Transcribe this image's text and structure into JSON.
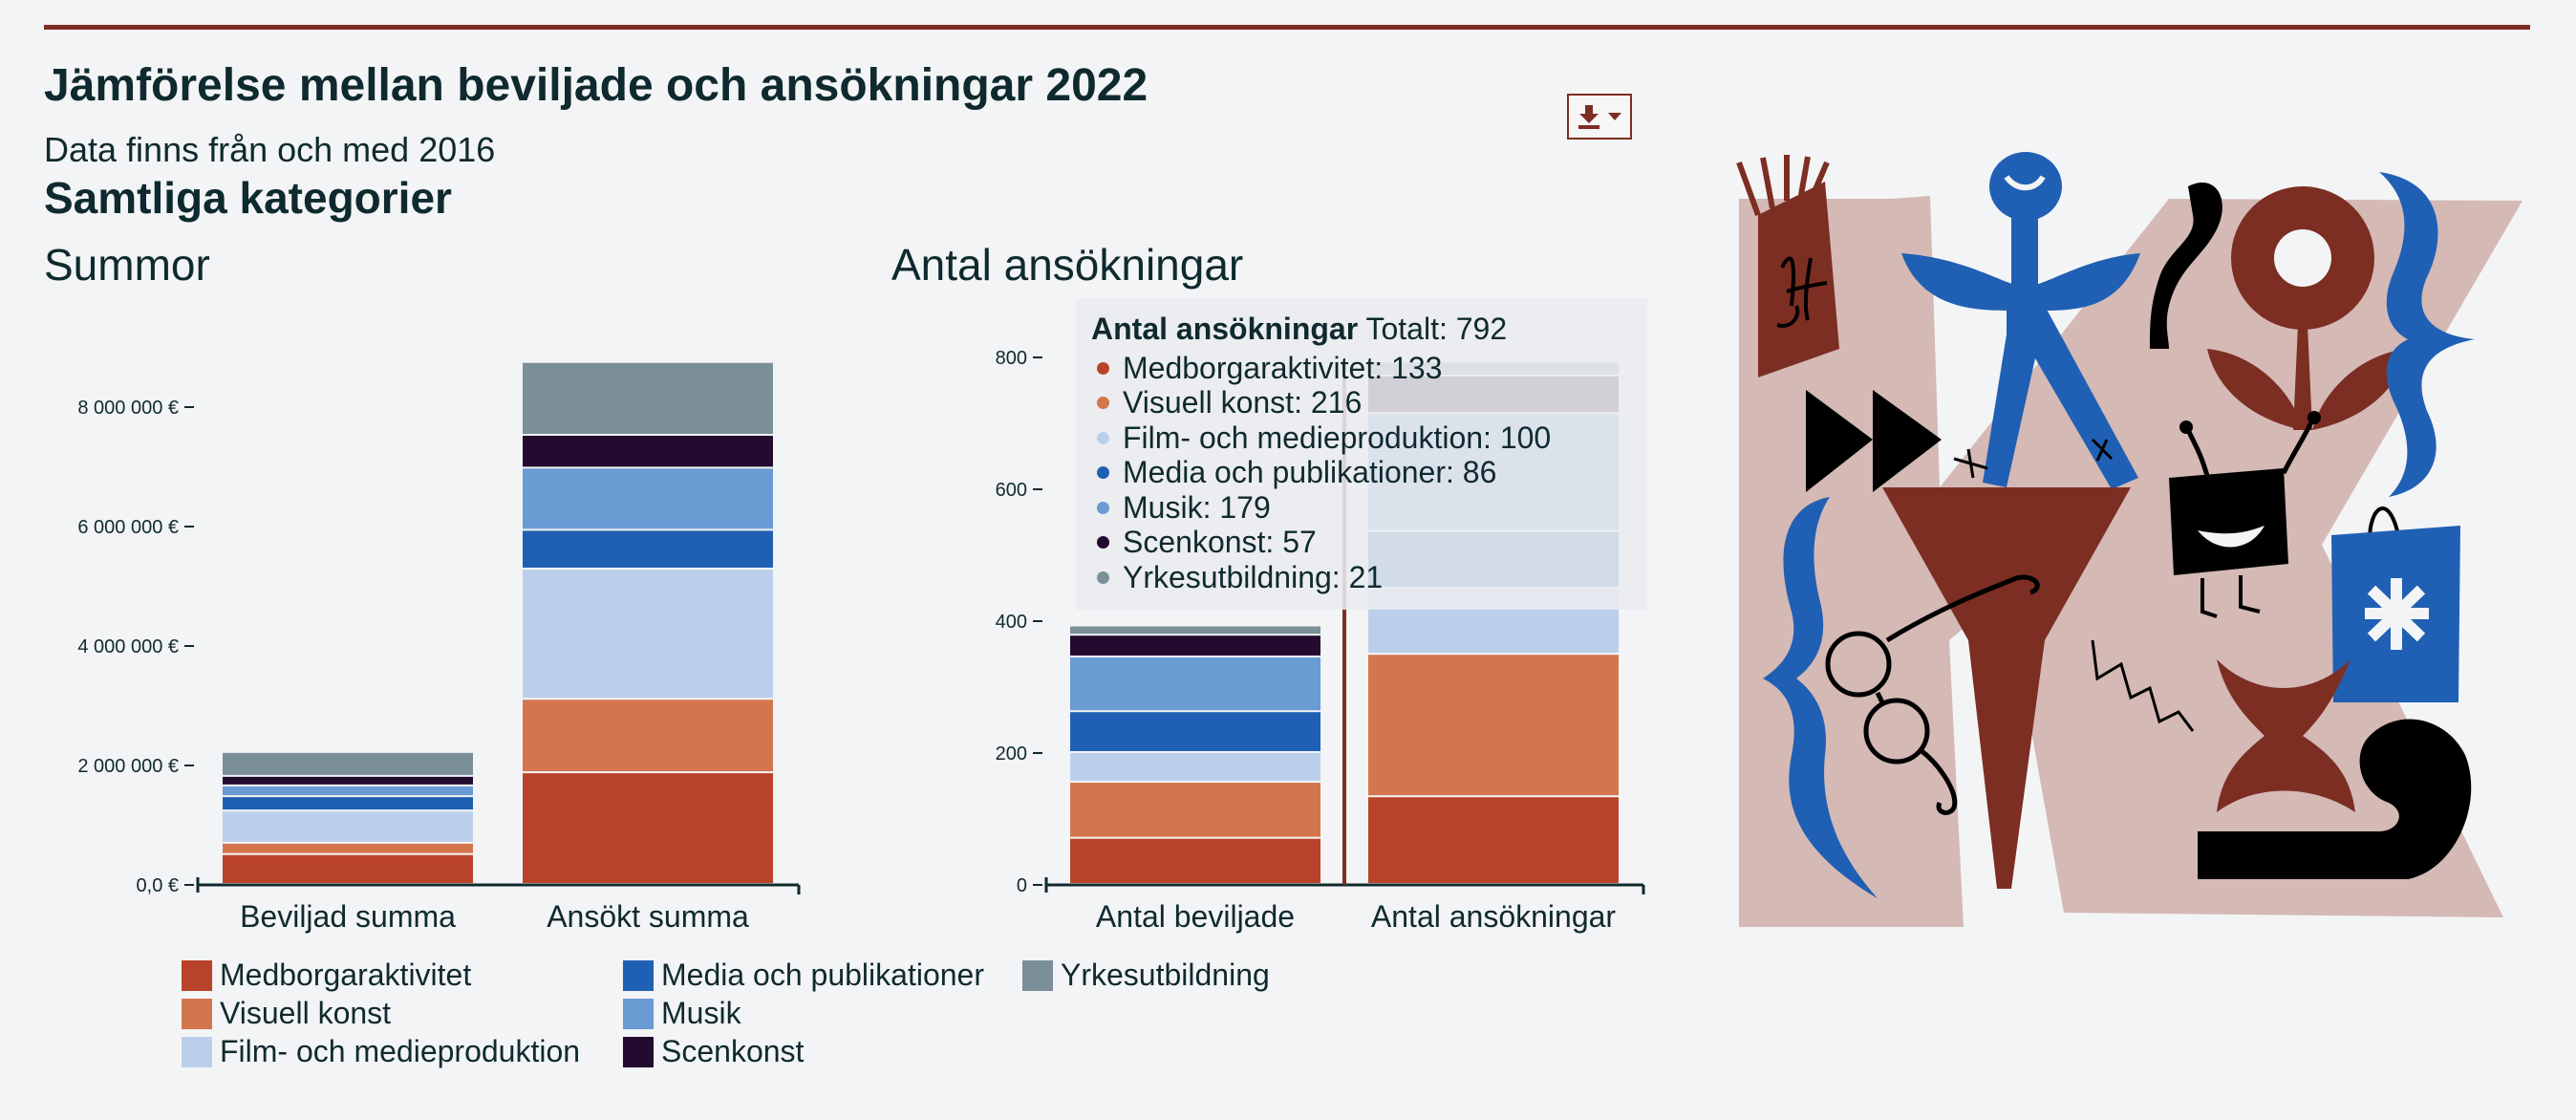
{
  "header": {
    "title": "Jämförelse mellan beviljade och ansökningar 2022",
    "subtitle": "Data finns från och med 2016",
    "category": "Samtliga kategorier"
  },
  "colors": {
    "Medborgaraktivitet": "#b9432a",
    "Visuell konst": "#d4764d",
    "Film- och medieproduktion": "#bccfea",
    "Media och publikationer": "#2060b4",
    "Musik": "#6a9bd2",
    "Scenkonst": "#230a2f",
    "Yrkesutbildning": "#7b8f98",
    "accent": "#7c2e23"
  },
  "legend": [
    "Medborgaraktivitet",
    "Visuell konst",
    "Film- och medieproduktion",
    "Media och publikationer",
    "Musik",
    "Scenkonst",
    "Yrkesutbildning"
  ],
  "icons": {
    "download": "download-icon",
    "caret": "caret-down-icon"
  },
  "tooltip": {
    "title": "Antal ansökningar",
    "total_label": "Totalt: 792",
    "rows": [
      "Medborgaraktivitet: 133",
      "Visuell konst: 216",
      "Film- och medieproduktion: 100",
      "Media och publikationer: 86",
      "Musik: 179",
      "Scenkonst: 57",
      "Yrkesutbildning: 21"
    ]
  },
  "chart_data": [
    {
      "type": "bar",
      "stacked": true,
      "title": "Summor",
      "categories": [
        "Beviljad summa",
        "Ansökt summa"
      ],
      "yticks": [
        0,
        2000000,
        4000000,
        6000000,
        8000000
      ],
      "ytick_labels": [
        "0,0 €",
        "2 000 000 €",
        "4 000 000 €",
        "6 000 000 €",
        "8 000 000 €"
      ],
      "ylim": [
        0,
        8800000
      ],
      "series": [
        {
          "name": "Medborgaraktivitet",
          "values": [
            500000,
            1870000
          ]
        },
        {
          "name": "Visuell konst",
          "values": [
            190000,
            1230000
          ]
        },
        {
          "name": "Film- och medieproduktion",
          "values": [
            540000,
            2180000
          ]
        },
        {
          "name": "Media och publikationer",
          "values": [
            240000,
            650000
          ]
        },
        {
          "name": "Musik",
          "values": [
            180000,
            1040000
          ]
        },
        {
          "name": "Scenkonst",
          "values": [
            160000,
            550000
          ]
        },
        {
          "name": "Yrkesutbildning",
          "values": [
            400000,
            1220000
          ]
        }
      ],
      "legend_position": "bottom"
    },
    {
      "type": "bar",
      "stacked": true,
      "title": "Antal ansökningar",
      "categories": [
        "Antal beviljade",
        "Antal ansökningar"
      ],
      "yticks": [
        0,
        200,
        400,
        600,
        800
      ],
      "ytick_labels": [
        "0",
        "200",
        "400",
        "600",
        "800"
      ],
      "ylim": [
        0,
        800
      ],
      "series": [
        {
          "name": "Medborgaraktivitet",
          "values": [
            70,
            133
          ]
        },
        {
          "name": "Visuell konst",
          "values": [
            85,
            216
          ]
        },
        {
          "name": "Film- och medieproduktion",
          "values": [
            45,
            100
          ]
        },
        {
          "name": "Media och publikationer",
          "values": [
            62,
            86
          ]
        },
        {
          "name": "Musik",
          "values": [
            83,
            179
          ]
        },
        {
          "name": "Scenkonst",
          "values": [
            33,
            57
          ]
        },
        {
          "name": "Yrkesutbildning",
          "values": [
            14,
            21
          ]
        }
      ],
      "highlighted_category": "Antal ansökningar",
      "legend_position": "bottom"
    }
  ]
}
